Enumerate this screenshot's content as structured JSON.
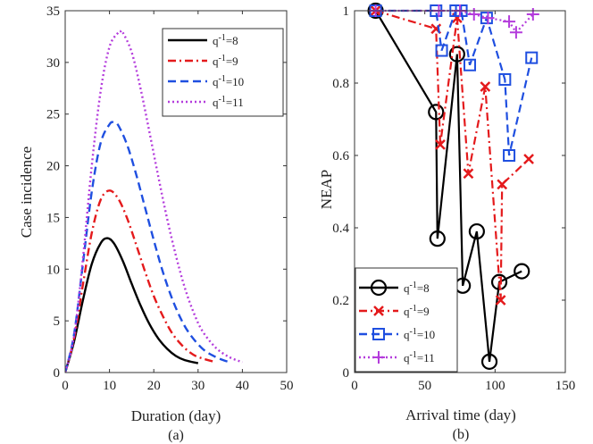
{
  "chart_data": [
    {
      "panel": "a",
      "type": "line",
      "caption": "(a)",
      "title": "",
      "xlabel": "Duration (day)",
      "ylabel": "Case incidence",
      "xlim": [
        0,
        50
      ],
      "ylim": [
        0,
        35
      ],
      "xticks": [
        "0",
        "10",
        "20",
        "30",
        "40",
        "50"
      ],
      "yticks": [
        "0",
        "5",
        "10",
        "15",
        "20",
        "25",
        "30",
        "35"
      ],
      "grid": false,
      "legend_position": "top-right",
      "series": [
        {
          "name": "q⁻¹=8",
          "label_base": "q",
          "label_sup": "-1",
          "label_rest": "=8",
          "color": "#000000",
          "dash": "solid",
          "marker": "none",
          "peak_x": 9.5,
          "peak_y": 13,
          "end_x": 30,
          "x": [
            0,
            2,
            4,
            6,
            8,
            9.5,
            11,
            13,
            15,
            17,
            19,
            21,
            23,
            25,
            27,
            30
          ],
          "y": [
            0,
            3.0,
            7.0,
            10.5,
            12.5,
            13.0,
            12.5,
            10.8,
            8.6,
            6.5,
            4.7,
            3.3,
            2.3,
            1.6,
            1.2,
            0.9
          ]
        },
        {
          "name": "q⁻¹=9",
          "label_base": "q",
          "label_sup": "-1",
          "label_rest": "=9",
          "color": "#e41a1c",
          "dash": "dashdot",
          "marker": "none",
          "peak_x": 10,
          "peak_y": 17.6,
          "end_x": 34,
          "x": [
            0,
            2,
            4,
            6,
            8,
            10,
            12,
            14,
            16,
            18,
            20,
            22,
            24,
            26,
            28,
            30,
            34
          ],
          "y": [
            0,
            3.3,
            8.5,
            13.5,
            16.7,
            17.6,
            16.8,
            14.9,
            12.4,
            9.8,
            7.4,
            5.5,
            3.9,
            2.8,
            2.0,
            1.5,
            1.0
          ]
        },
        {
          "name": "q⁻¹=10",
          "label_base": "q",
          "label_sup": "-1",
          "label_rest": "=10",
          "color": "#1f4fe0",
          "dash": "dashed",
          "marker": "none",
          "peak_x": 11,
          "peak_y": 24.2,
          "end_x": 37,
          "x": [
            0,
            2,
            4,
            6,
            8,
            10,
            11,
            12,
            14,
            16,
            18,
            20,
            22,
            24,
            26,
            28,
            31,
            34,
            37
          ],
          "y": [
            0,
            3.7,
            10.5,
            17.5,
            22.2,
            24.0,
            24.2,
            23.9,
            22.0,
            19.2,
            16.0,
            12.8,
            9.8,
            7.3,
            5.3,
            3.8,
            2.3,
            1.5,
            1.0
          ]
        },
        {
          "name": "q⁻¹=11",
          "label_base": "q",
          "label_sup": "-1",
          "label_rest": "=11",
          "color": "#b43cdc",
          "dash": "dotted",
          "marker": "none",
          "peak_x": 12.5,
          "peak_y": 33,
          "end_x": 40,
          "x": [
            0,
            2,
            4,
            6,
            8,
            10,
            12,
            12.5,
            13,
            15,
            17,
            19,
            21,
            23,
            25,
            27,
            29,
            31,
            34,
            37,
            40
          ],
          "y": [
            0,
            3.5,
            11.0,
            20.0,
            27.2,
            31.5,
            32.9,
            33.0,
            32.9,
            31.0,
            27.5,
            23.3,
            19.0,
            14.9,
            11.3,
            8.2,
            5.8,
            4.0,
            2.4,
            1.5,
            1.0
          ]
        }
      ]
    },
    {
      "panel": "b",
      "type": "line",
      "caption": "(b)",
      "title": "",
      "xlabel": "Arrival time (day)",
      "ylabel": "NEAP",
      "xlim": [
        0,
        150
      ],
      "ylim": [
        0,
        1
      ],
      "xticks": [
        "0",
        "50",
        "100",
        "150"
      ],
      "yticks": [
        "0",
        "0.2",
        "0.4",
        "0.6",
        "0.8",
        "1"
      ],
      "grid": false,
      "legend_position": "bottom-left",
      "series": [
        {
          "name": "q⁻¹=8",
          "label_base": "q",
          "label_sup": "-1",
          "label_rest": "=8",
          "color": "#000000",
          "dash": "solid",
          "marker": "circle",
          "x": [
            15,
            58,
            59,
            73,
            77,
            87,
            96,
            103,
            119
          ],
          "y": [
            1.0,
            0.72,
            0.37,
            0.88,
            0.24,
            0.39,
            0.03,
            0.25,
            0.28
          ]
        },
        {
          "name": "q⁻¹=9",
          "label_base": "q",
          "label_sup": "-1",
          "label_rest": "=9",
          "color": "#e41a1c",
          "dash": "dashdot",
          "marker": "x",
          "x": [
            15,
            58,
            61,
            73,
            81,
            93,
            104,
            105,
            124
          ],
          "y": [
            1.0,
            0.95,
            0.63,
            0.98,
            0.55,
            0.79,
            0.2,
            0.52,
            0.59
          ]
        },
        {
          "name": "q⁻¹=10",
          "label_base": "q",
          "label_sup": "-1",
          "label_rest": "=10",
          "color": "#1f4fe0",
          "dash": "dashed",
          "marker": "square",
          "x": [
            15,
            58,
            62,
            72,
            76,
            82,
            94,
            107,
            110,
            126
          ],
          "y": [
            1.0,
            1.0,
            0.89,
            1.0,
            1.0,
            0.85,
            0.98,
            0.81,
            0.6,
            0.87
          ],
          "note": "points at x 58, 72, 76 sit at 1.0; the 58 point is partly hidden"
        },
        {
          "name": "q⁻¹=11",
          "label_base": "q",
          "label_sup": "-1",
          "label_rest": "=11",
          "color": "#b43cdc",
          "dash": "dotted",
          "marker": "plus",
          "x": [
            15,
            60,
            75,
            85,
            95,
            110,
            115,
            127
          ],
          "y": [
            1.0,
            1.0,
            1.0,
            0.99,
            0.98,
            0.97,
            0.94,
            0.99
          ]
        }
      ]
    }
  ]
}
